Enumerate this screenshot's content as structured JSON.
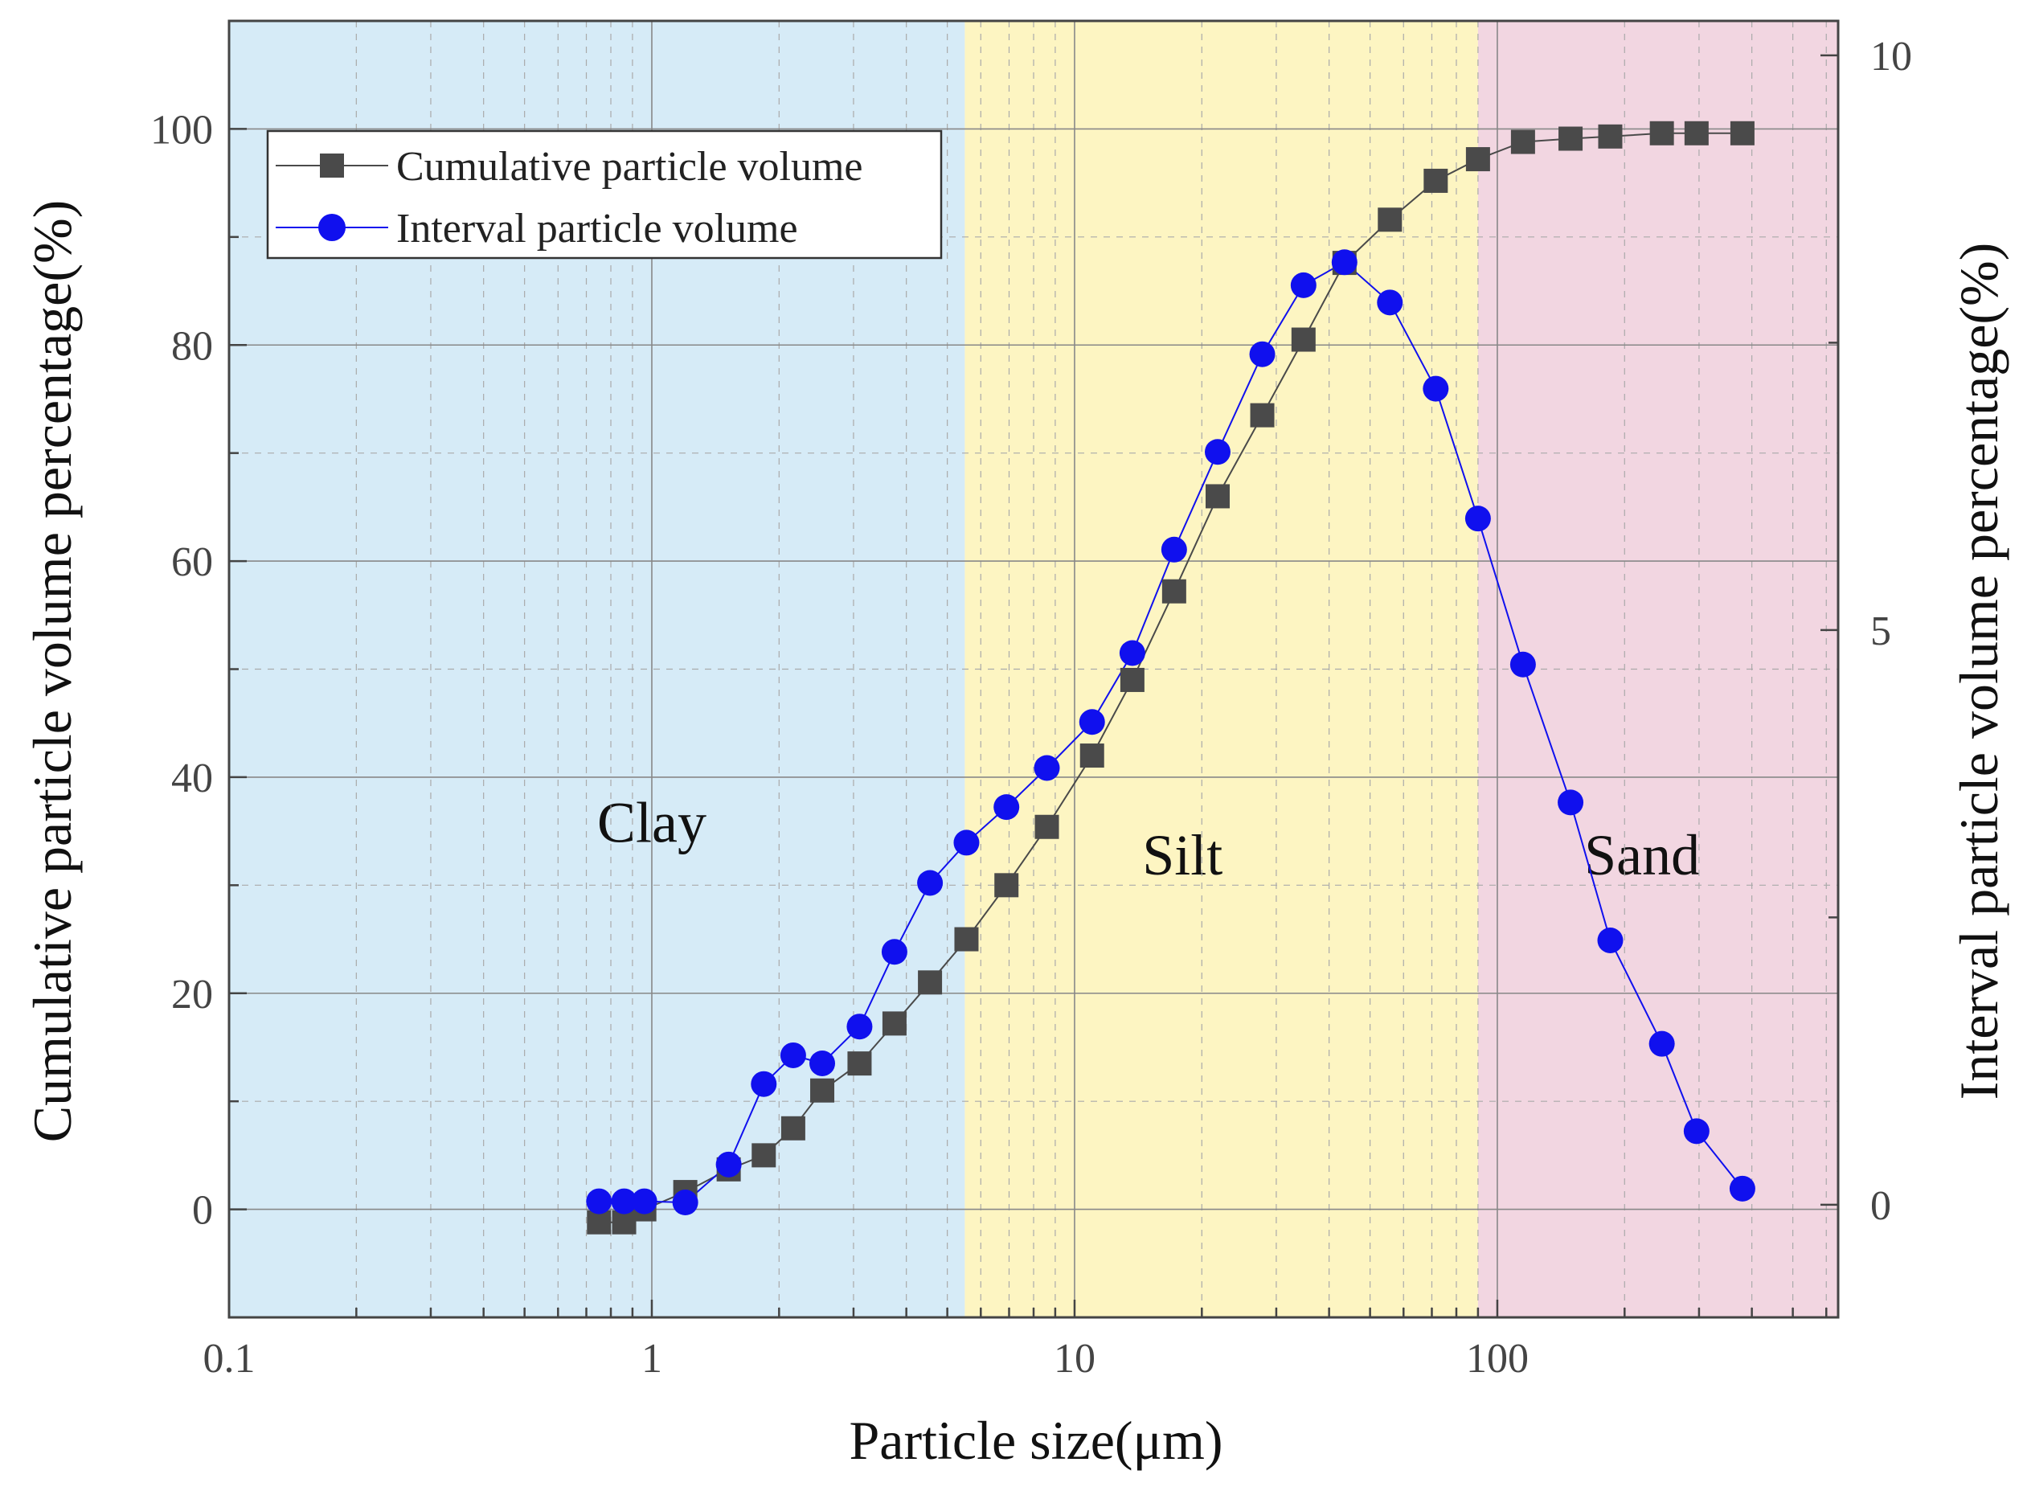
{
  "chart_data": {
    "type": "line",
    "xlabel": "Particle size(μm)",
    "ylabel": "Cumulative particle volume percentage(%)",
    "y2label": "Interval particle volume percentage(%)",
    "xscale": "log",
    "xlim": [
      0.1,
      640
    ],
    "ylim": [
      -10,
      110
    ],
    "y2lim": [
      -0.98,
      10.3
    ],
    "xticks": [
      {
        "value": 0.1,
        "label": "0.1"
      },
      {
        "value": 1,
        "label": "1"
      },
      {
        "value": 10,
        "label": "10"
      },
      {
        "value": 100,
        "label": "100"
      }
    ],
    "yticks": [
      {
        "value": 0,
        "label": "0"
      },
      {
        "value": 20,
        "label": "20"
      },
      {
        "value": 40,
        "label": "40"
      },
      {
        "value": 60,
        "label": "60"
      },
      {
        "value": 80,
        "label": "80"
      },
      {
        "value": 100,
        "label": "100"
      }
    ],
    "y2ticks": [
      {
        "value": 0,
        "label": "0"
      },
      {
        "value": 5,
        "label": "5"
      },
      {
        "value": 10,
        "label": "10"
      }
    ],
    "regions": [
      {
        "name": "Clay",
        "from": 0.1,
        "to": 5.5,
        "color": "#d6ebf7",
        "label_x": 1.0,
        "label_y": 34
      },
      {
        "name": "Silt",
        "from": 5.5,
        "to": 90,
        "color": "#fdf5c2",
        "label_x": 18,
        "label_y": 31
      },
      {
        "name": "Sand",
        "from": 90,
        "to": 640,
        "color": "#f2d6e1",
        "label_x": 220,
        "label_y": 31
      }
    ],
    "legend_position": "top-left",
    "series": [
      {
        "name": "Cumulative particle volume",
        "axis": "left",
        "marker": "square",
        "color": "#4a4a4a",
        "x": [
          0.75,
          0.86,
          0.96,
          1.2,
          1.52,
          1.84,
          2.16,
          2.53,
          3.1,
          3.75,
          4.55,
          5.55,
          6.9,
          8.6,
          11,
          13.7,
          17.2,
          21.8,
          27.8,
          34.8,
          43.5,
          55.7,
          71.5,
          90,
          115,
          149,
          185,
          245,
          296,
          380
        ],
        "values": [
          -1.2,
          -1.2,
          0,
          1.6,
          3.7,
          5.0,
          7.5,
          11.0,
          13.5,
          17.2,
          21.0,
          25.0,
          30.0,
          35.4,
          42.0,
          49.0,
          57.2,
          66.0,
          73.5,
          80.5,
          87.6,
          91.6,
          95.2,
          97.2,
          98.8,
          99.1,
          99.3,
          99.6,
          99.6,
          99.6
        ]
      },
      {
        "name": "Interval particle volume",
        "axis": "right",
        "marker": "circle",
        "color": "#1010ee",
        "x": [
          0.75,
          0.86,
          0.96,
          1.2,
          1.52,
          1.84,
          2.16,
          2.53,
          3.1,
          3.75,
          4.55,
          5.55,
          6.9,
          8.6,
          11,
          13.7,
          17.2,
          21.8,
          27.8,
          34.8,
          43.5,
          55.7,
          71.5,
          90,
          115,
          149,
          185,
          245,
          296,
          380
        ],
        "values": [
          0.03,
          0.03,
          0.03,
          0.02,
          0.35,
          1.05,
          1.3,
          1.23,
          1.55,
          2.2,
          2.8,
          3.15,
          3.46,
          3.8,
          4.2,
          4.8,
          5.7,
          6.55,
          7.4,
          8.0,
          8.2,
          7.85,
          7.1,
          5.97,
          4.7,
          3.5,
          2.3,
          1.4,
          0.64,
          0.14
        ]
      }
    ]
  }
}
